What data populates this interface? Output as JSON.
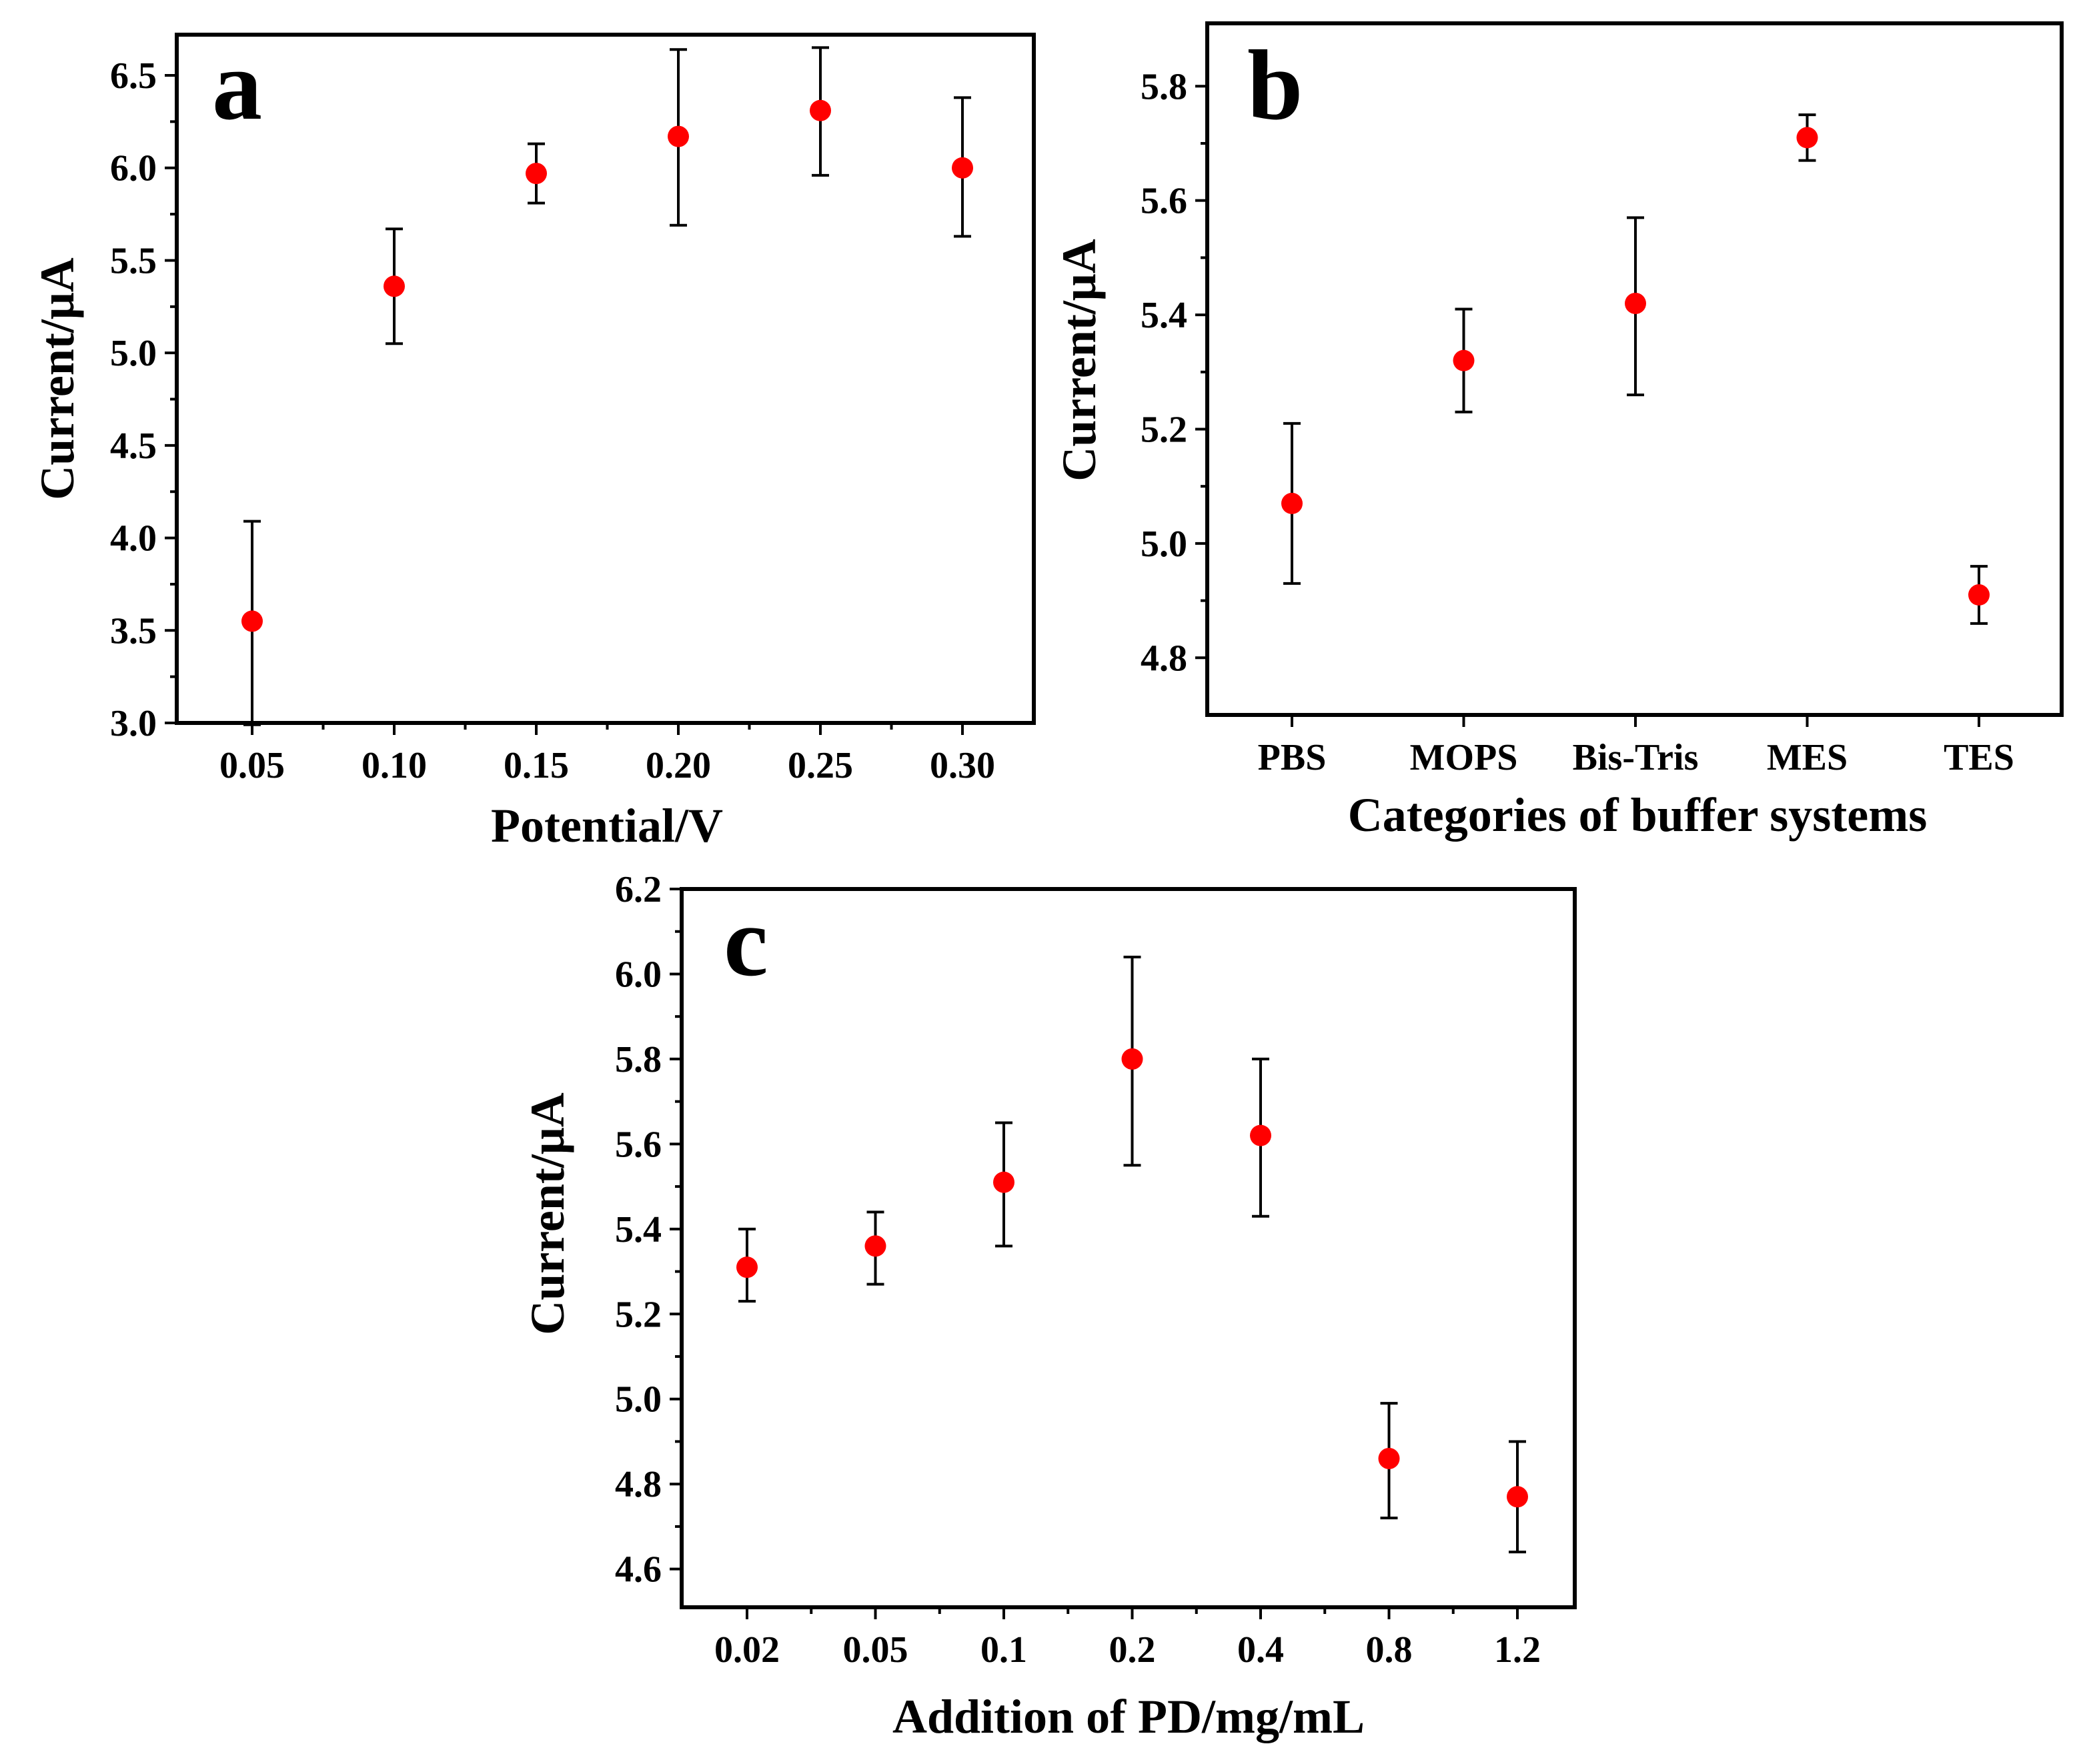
{
  "chart_data": [
    {
      "type": "scatter",
      "panel_label": "a",
      "xlabel": "Potential/V",
      "ylabel": "Current/μA",
      "categories": [
        "0.05",
        "0.10",
        "0.15",
        "0.20",
        "0.25",
        "0.30"
      ],
      "values": [
        3.55,
        5.36,
        5.97,
        6.17,
        6.31,
        6.0
      ],
      "err_low": [
        2.99,
        5.05,
        5.81,
        5.69,
        5.96,
        5.63
      ],
      "err_high": [
        4.09,
        5.67,
        6.13,
        6.64,
        6.65,
        6.38
      ],
      "yticks": [
        "3.0",
        "3.5",
        "4.0",
        "4.5",
        "5.0",
        "5.5",
        "6.0",
        "6.5"
      ],
      "ylim": [
        3.0,
        6.72
      ],
      "marker_color": "#ff0000"
    },
    {
      "type": "scatter",
      "panel_label": "b",
      "xlabel": "Categories of buffer systems",
      "ylabel": "Current/μA",
      "categories": [
        "PBS",
        "MOPS",
        "Bis-Tris",
        "MES",
        "TES"
      ],
      "values": [
        5.07,
        5.32,
        5.42,
        5.71,
        4.91
      ],
      "err_low": [
        4.93,
        5.23,
        5.26,
        5.67,
        4.86
      ],
      "err_high": [
        5.21,
        5.41,
        5.57,
        5.75,
        4.96
      ],
      "yticks": [
        "4.8",
        "5.0",
        "5.2",
        "5.4",
        "5.6",
        "5.8"
      ],
      "ylim": [
        4.7,
        5.91
      ],
      "marker_color": "#ff0000"
    },
    {
      "type": "scatter",
      "panel_label": "c",
      "xlabel": "Addition of PD/mg/mL",
      "ylabel": "Current/μA",
      "categories": [
        "0.02",
        "0.05",
        "0.1",
        "0.2",
        "0.4",
        "0.8",
        "1.2"
      ],
      "values": [
        5.31,
        5.36,
        5.51,
        5.8,
        5.62,
        4.86,
        4.77
      ],
      "err_low": [
        5.23,
        5.27,
        5.36,
        5.55,
        5.43,
        4.72,
        4.64
      ],
      "err_high": [
        5.4,
        5.44,
        5.65,
        6.04,
        5.8,
        4.99,
        4.9
      ],
      "yticks": [
        "4.6",
        "4.8",
        "5.0",
        "5.2",
        "5.4",
        "5.6",
        "5.8",
        "6.0",
        "6.2"
      ],
      "ylim": [
        4.51,
        6.2
      ],
      "marker_color": "#ff0000"
    }
  ]
}
